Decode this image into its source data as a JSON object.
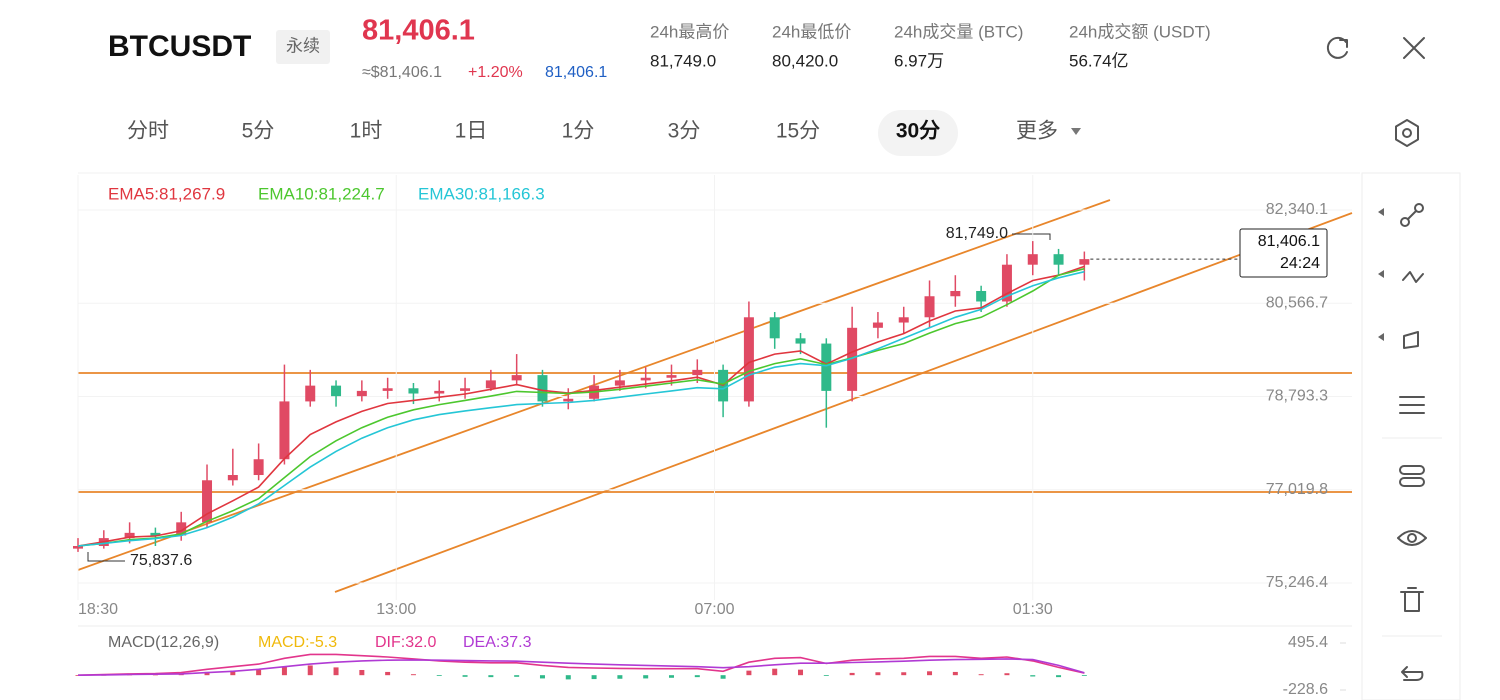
{
  "header": {
    "symbol": "BTCUSDT",
    "contract": "永续",
    "last_price": "81,406.1",
    "usd_price": "≈$81,406.1",
    "change": "+1.20%",
    "mark_price": "81,406.1",
    "stats": [
      {
        "label": "24h最高价",
        "value": "81,749.0"
      },
      {
        "label": "24h最低价",
        "value": "80,420.0"
      },
      {
        "label": "24h成交量 (BTC)",
        "value": "6.97万"
      },
      {
        "label": "24h成交额 (USDT)",
        "value": "56.74亿"
      }
    ]
  },
  "tabs": [
    "分时",
    "5分",
    "1时",
    "1日",
    "1分",
    "3分",
    "15分",
    "30分",
    "更多"
  ],
  "active_tab": 7,
  "chart_data": [
    {
      "type": "candlestick",
      "x": [
        0,
        3,
        6,
        9,
        12,
        15,
        18,
        21,
        24,
        27,
        30,
        33,
        36,
        39,
        42,
        45,
        48,
        51,
        54,
        57,
        60,
        63,
        66,
        69,
        72,
        75,
        78,
        81,
        84,
        87,
        90,
        93,
        96,
        99,
        102,
        105,
        108,
        111,
        114,
        117
      ],
      "open": [
        75900,
        75950,
        76100,
        76200,
        76150,
        76400,
        77200,
        77300,
        77600,
        78700,
        79000,
        78800,
        78900,
        78950,
        78850,
        78900,
        78950,
        79100,
        79200,
        78700,
        78750,
        79000,
        79100,
        79150,
        79200,
        79300,
        78700,
        80300,
        79900,
        79800,
        78900,
        80100,
        80200,
        80300,
        80700,
        80800,
        80600,
        81300,
        81500,
        81300
      ],
      "high": [
        76100,
        76250,
        76400,
        76300,
        76600,
        77500,
        77800,
        77900,
        79400,
        79300,
        79100,
        79100,
        79150,
        79050,
        79100,
        79150,
        79300,
        79600,
        79300,
        78950,
        79200,
        79300,
        79350,
        79400,
        79500,
        79400,
        80600,
        80400,
        80000,
        79900,
        80500,
        80400,
        80500,
        81000,
        81100,
        80900,
        81500,
        81749.0,
        81600,
        81550
      ],
      "low": [
        75837.6,
        75900,
        76000,
        75950,
        76050,
        76300,
        77100,
        77200,
        77500,
        78600,
        78600,
        78700,
        78750,
        78650,
        78700,
        78750,
        78900,
        79000,
        78600,
        78550,
        78700,
        78900,
        78950,
        79000,
        79050,
        78400,
        78600,
        79700,
        79600,
        78200,
        78700,
        79900,
        80000,
        80100,
        80500,
        80400,
        80500,
        81100,
        81100,
        81000
      ],
      "close": [
        75950,
        76100,
        76200,
        76150,
        76400,
        77200,
        77300,
        77600,
        78700,
        79000,
        78800,
        78900,
        78950,
        78850,
        78900,
        78950,
        79100,
        79200,
        78700,
        78750,
        79000,
        79100,
        79150,
        79200,
        79300,
        78700,
        80300,
        79900,
        79800,
        78900,
        80100,
        80200,
        80300,
        80700,
        80800,
        80600,
        81300,
        81500,
        81300,
        81406.1
      ],
      "up_color": "#e04a64",
      "down_color": "#2fb98a",
      "series": [
        {
          "name": "EMA5:81,267.9",
          "color": "#e0363f",
          "values": [
            75950,
            76030,
            76120,
            76140,
            76240,
            76560,
            76810,
            77070,
            77610,
            78070,
            78310,
            78510,
            78660,
            78720,
            78780,
            78840,
            78930,
            79020,
            78910,
            78860,
            78910,
            78970,
            79030,
            79090,
            79160,
            79010,
            79440,
            79600,
            79660,
            79410,
            79640,
            79830,
            79990,
            80230,
            80420,
            80480,
            80750,
            81000,
            81100,
            81267.9
          ]
        },
        {
          "name": "EMA10:81,224.7",
          "color": "#4cc72e",
          "values": [
            75950,
            76000,
            76070,
            76100,
            76180,
            76420,
            76620,
            76850,
            77250,
            77650,
            77950,
            78200,
            78400,
            78540,
            78640,
            78720,
            78800,
            78890,
            78870,
            78850,
            78880,
            78930,
            78990,
            79050,
            79110,
            79030,
            79270,
            79420,
            79510,
            79400,
            79530,
            79670,
            79800,
            80000,
            80180,
            80300,
            80540,
            80800,
            81100,
            81224.7
          ]
        },
        {
          "name": "EMA30:81,166.3",
          "color": "#25c6d6",
          "values": [
            75950,
            76000,
            76050,
            76090,
            76150,
            76300,
            76500,
            76750,
            77100,
            77450,
            77750,
            78000,
            78200,
            78350,
            78450,
            78520,
            78580,
            78640,
            78660,
            78680,
            78720,
            78780,
            78840,
            78900,
            78960,
            78940,
            79200,
            79350,
            79420,
            79380,
            79520,
            79700,
            79900,
            80100,
            80300,
            80450,
            80700,
            80900,
            81050,
            81166.3
          ]
        }
      ],
      "xlim": [
        0,
        148
      ],
      "ylim": [
        74923,
        83006
      ],
      "xticks": [
        {
          "value": 0,
          "label": "18:30"
        },
        {
          "value": 37,
          "label": "13:00"
        },
        {
          "value": 74,
          "label": "07:00"
        },
        {
          "value": 111,
          "label": "01:30"
        }
      ],
      "yticks": [
        {
          "value": 82340.1,
          "label": "82,340.1"
        },
        {
          "value": 80566.7,
          "label": "80,566.7"
        },
        {
          "value": 78793.3,
          "label": "78,793.3"
        },
        {
          "value": 77019.8,
          "label": "77,019.8"
        },
        {
          "value": 75246.4,
          "label": "75,246.4"
        }
      ],
      "grid": true,
      "annotations": [
        "81,749.0",
        "75,837.6"
      ],
      "last_price_label": "81,406.1",
      "countdown": "24:24"
    },
    {
      "type": "macd",
      "title": "MACD(12,26,9)",
      "x": [
        0,
        3,
        6,
        9,
        12,
        15,
        18,
        21,
        24,
        27,
        30,
        33,
        36,
        39,
        42,
        45,
        48,
        51,
        54,
        57,
        60,
        63,
        66,
        69,
        72,
        75,
        78,
        81,
        84,
        87,
        90,
        93,
        96,
        99,
        102,
        105,
        108,
        111,
        114,
        117
      ],
      "up_color": "#e04a64",
      "down_color": "#2fb98a",
      "series": [
        {
          "name": "MACD:-5.3",
          "color": "#f0b90b",
          "kind": "bar",
          "values": [
            0,
            5,
            10,
            10,
            20,
            50,
            70,
            80,
            130,
            150,
            120,
            80,
            50,
            15,
            -10,
            -25,
            -30,
            -25,
            -50,
            -65,
            -60,
            -55,
            -50,
            -40,
            -30,
            -55,
            70,
            100,
            85,
            -5,
            35,
            45,
            45,
            60,
            50,
            15,
            30,
            -20,
            -30,
            -5.3
          ]
        },
        {
          "name": "DIF:32.0",
          "color": "#e2358c",
          "kind": "line",
          "values": [
            0,
            10,
            20,
            25,
            40,
            90,
            130,
            170,
            260,
            320,
            320,
            300,
            280,
            250,
            220,
            200,
            190,
            190,
            150,
            120,
            110,
            105,
            100,
            100,
            100,
            60,
            200,
            260,
            270,
            180,
            230,
            250,
            260,
            290,
            290,
            260,
            280,
            220,
            120,
            32.0
          ]
        },
        {
          "name": "DEA:37.3",
          "color": "#b03ad4",
          "kind": "line",
          "values": [
            0,
            5,
            10,
            15,
            20,
            40,
            60,
            90,
            130,
            170,
            200,
            220,
            230,
            235,
            230,
            225,
            220,
            215,
            200,
            185,
            170,
            160,
            150,
            140,
            130,
            115,
            130,
            160,
            185,
            185,
            195,
            205,
            215,
            230,
            240,
            245,
            250,
            240,
            150,
            37.3
          ]
        }
      ],
      "xlim": [
        0,
        148
      ],
      "ylim": [
        -336,
        665
      ],
      "yticks": [
        495.4,
        -228.6
      ]
    }
  ]
}
